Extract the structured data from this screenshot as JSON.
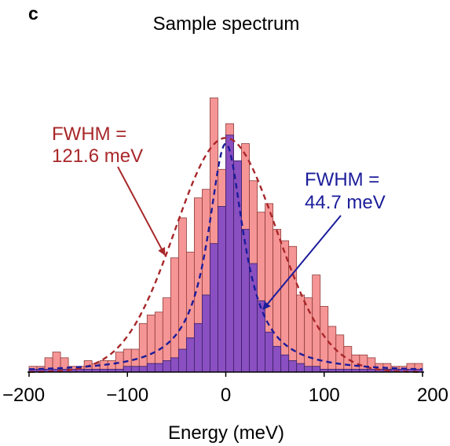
{
  "panel_label": "c",
  "colors": {
    "sample_fill": "#f69595",
    "sample_stroke": "#8c3a3a",
    "narrow_fill": "#8a4fc0",
    "narrow_stroke": "#3a1f66",
    "red_fit": "#a8272a",
    "blue_fit": "#1b1c9a"
  },
  "chart_data": {
    "type": "bar",
    "title": "Sample spectrum",
    "xlabel": "Energy (meV)",
    "ylabel": "",
    "xlim": [
      -200,
      200
    ],
    "ylim": [
      0,
      100
    ],
    "xticks": [
      -200,
      -100,
      0,
      100,
      200
    ],
    "xtick_labels": [
      "−200",
      "−100",
      "0",
      "100",
      "200"
    ],
    "bin_width": 8,
    "bin_starts": [
      -200,
      -192,
      -184,
      -176,
      -168,
      -160,
      -152,
      -144,
      -136,
      -128,
      -120,
      -112,
      -104,
      -96,
      -88,
      -80,
      -72,
      -64,
      -56,
      -48,
      -40,
      -32,
      -24,
      -16,
      -8,
      0,
      8,
      16,
      24,
      32,
      40,
      48,
      56,
      64,
      72,
      80,
      88,
      96,
      104,
      112,
      120,
      128,
      136,
      144,
      152,
      160,
      168,
      176,
      184,
      192
    ],
    "series": [
      {
        "values": [
          2,
          2,
          5,
          7,
          5,
          2,
          2,
          4,
          3,
          4,
          4,
          7,
          8,
          8,
          17,
          20,
          21,
          26,
          40,
          54,
          42,
          61,
          64,
          96,
          71,
          87,
          72,
          80,
          67,
          56,
          59,
          50,
          46,
          44,
          27,
          26,
          34,
          23,
          16,
          13,
          9,
          6,
          6,
          5,
          3,
          3,
          2,
          2,
          3,
          3
        ]
      },
      {
        "values": [
          1,
          1,
          1,
          1,
          1,
          1,
          1,
          1,
          1,
          1,
          1,
          1,
          2,
          2,
          2,
          3,
          3,
          4,
          5,
          8,
          12,
          17,
          27,
          45,
          58,
          83,
          74,
          50,
          38,
          25,
          14,
          9,
          6,
          4,
          3,
          2,
          2,
          1,
          1,
          1,
          1,
          1,
          1,
          1,
          1,
          1,
          1,
          1,
          1,
          1
        ]
      }
    ],
    "fits": [
      {
        "label": "FWHM = 121.6 meV",
        "shape": "gaussian",
        "center": 0,
        "fwhm": 121.6,
        "peak": 82,
        "style": "dashed"
      },
      {
        "label": "FWHM = 44.7 meV",
        "shape": "lorentzian",
        "center": 0,
        "fwhm": 44.7,
        "peak": 80,
        "style": "dashed"
      }
    ],
    "annotations": [
      {
        "lines": [
          "FWHM =",
          "121.6 meV"
        ],
        "arrow_to": [
          -62,
          41
        ]
      },
      {
        "lines": [
          "FWHM =",
          "44.7 meV"
        ],
        "arrow_to": [
          38,
          22
        ]
      }
    ]
  }
}
